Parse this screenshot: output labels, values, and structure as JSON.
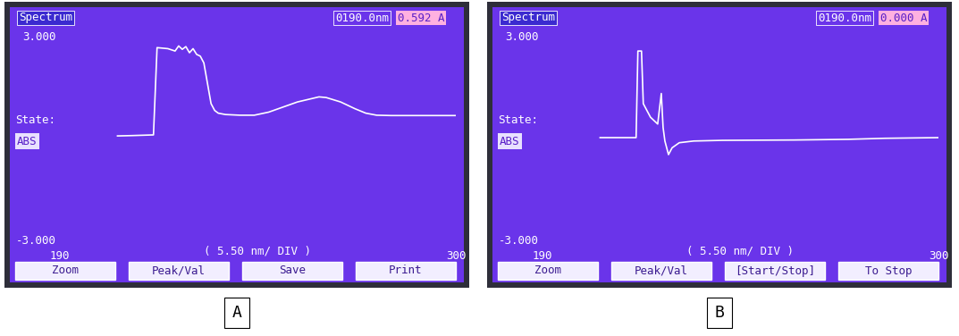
{
  "chart_data": [
    {
      "type": "line",
      "panel": "A",
      "title": "Spectrum",
      "readout": {
        "wavelength": "0190.0nm",
        "value": "0.592 A"
      },
      "state_label": "State:",
      "state": "ABS",
      "xlabel": "( 5.50 nm/ DIV )",
      "buttons": [
        "Zoom",
        "Peak/Val",
        "Save",
        "Print"
      ],
      "x": [
        206,
        210,
        216,
        217,
        220,
        222,
        223,
        224,
        225,
        226,
        227,
        228,
        229,
        230,
        231,
        232,
        233,
        234,
        236,
        240,
        244,
        248,
        252,
        256,
        260,
        262,
        264,
        268,
        272,
        275,
        278,
        282,
        290,
        300
      ],
      "values": [
        0.05,
        0.06,
        0.08,
        2.65,
        2.62,
        2.55,
        2.7,
        2.6,
        2.68,
        2.5,
        2.62,
        2.45,
        2.4,
        2.2,
        1.6,
        1.0,
        0.8,
        0.72,
        0.68,
        0.66,
        0.66,
        0.75,
        0.9,
        1.05,
        1.15,
        1.2,
        1.18,
        1.05,
        0.85,
        0.72,
        0.66,
        0.65,
        0.65,
        0.65
      ],
      "color": "#ffffff",
      "xlim": [
        190,
        300
      ],
      "xticks": [
        190,
        300
      ],
      "ylim": [
        -3,
        3
      ],
      "yticks": [
        {
          "value": -3,
          "label": "-3.000"
        },
        {
          "value": 3,
          "label": "3.000"
        }
      ]
    },
    {
      "type": "line",
      "panel": "B",
      "title": "Spectrum",
      "readout": {
        "wavelength": "0190.0nm",
        "value": "0.000 A"
      },
      "state_label": "State:",
      "state": "ABS",
      "xlabel": "( 5.50 nm/ DIV )",
      "buttons": [
        "Zoom",
        "Peak/Val",
        "[Start/Stop]",
        "To Stop"
      ],
      "x": [
        206,
        216,
        216.5,
        217.5,
        218,
        220,
        222,
        223,
        223.5,
        224,
        225,
        226,
        228,
        232,
        240,
        260,
        275,
        285,
        300
      ],
      "values": [
        0.0,
        0.0,
        2.55,
        2.55,
        1.0,
        0.6,
        0.4,
        1.3,
        0.3,
        -0.1,
        -0.5,
        -0.3,
        -0.15,
        -0.1,
        -0.08,
        -0.07,
        -0.05,
        -0.02,
        0.0
      ],
      "color": "#ffffff",
      "xlim": [
        190,
        300
      ],
      "xticks": [
        190,
        300
      ],
      "ylim": [
        -3,
        3
      ],
      "yticks": [
        {
          "value": -3,
          "label": "-3.000"
        },
        {
          "value": 3,
          "label": "3.000"
        }
      ]
    }
  ]
}
